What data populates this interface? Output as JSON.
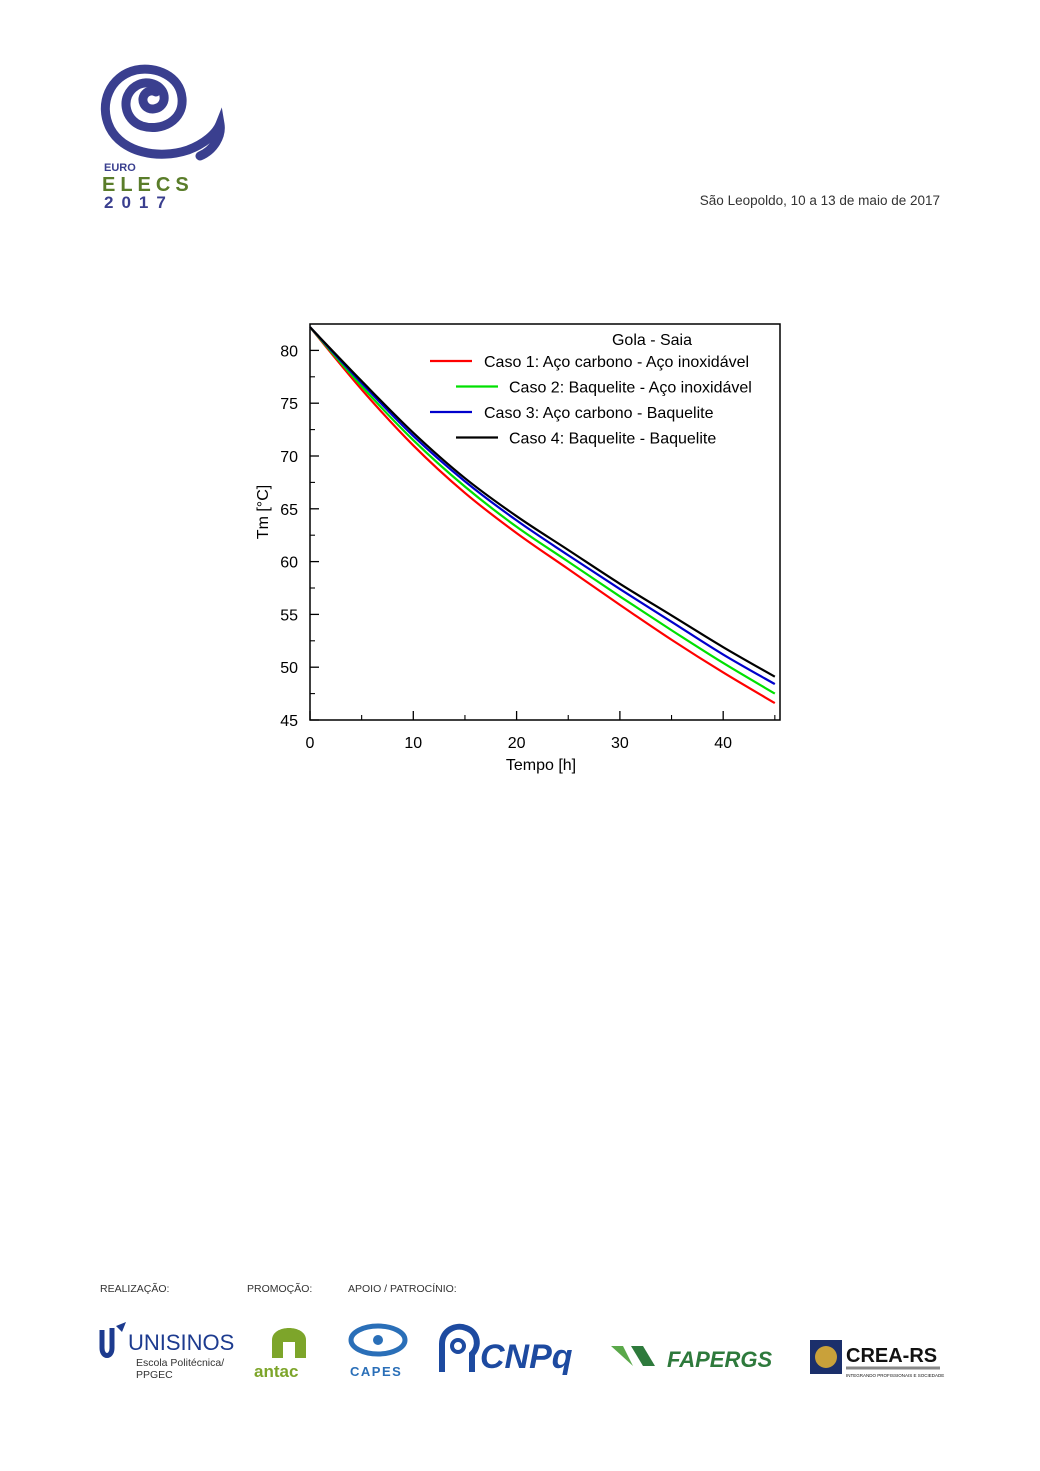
{
  "header": {
    "logo_top": "EURO",
    "logo_middle": "ELECS",
    "logo_year": "2017",
    "date_line": "São Leopoldo, 10 a 13 de maio de 2017"
  },
  "chart_data": {
    "type": "line",
    "title": "",
    "legend_title": "Gola - Saia",
    "xlabel": "Tempo [h]",
    "ylabel": "Tm [°C]",
    "xlim": [
      0,
      45.5
    ],
    "ylim": [
      45,
      82.5
    ],
    "xticks": [
      0,
      10,
      20,
      30,
      40
    ],
    "yticks": [
      45,
      50,
      55,
      60,
      65,
      70,
      75,
      80
    ],
    "legend_position": "top-right",
    "grid": false,
    "x": [
      0,
      5,
      10,
      15,
      20,
      25,
      30,
      35,
      40,
      45
    ],
    "series": [
      {
        "name": "Caso 1: Aço carbono - Aço inoxidável",
        "color": "#ff0000",
        "values": [
          82.2,
          76.3,
          71.0,
          66.5,
          62.7,
          59.3,
          55.9,
          52.6,
          49.5,
          46.6
        ]
      },
      {
        "name": "Caso 2: Baquelite - Aço inoxidável",
        "color": "#00e000",
        "values": [
          82.2,
          76.6,
          71.5,
          67.1,
          63.3,
          60.0,
          56.7,
          53.5,
          50.4,
          47.5
        ]
      },
      {
        "name": "Caso 3: Aço carbono - Baquelite",
        "color": "#0000cc",
        "values": [
          82.2,
          76.9,
          71.9,
          67.6,
          63.9,
          60.6,
          57.4,
          54.3,
          51.2,
          48.4
        ]
      },
      {
        "name": "Caso 4: Baquelite - Baquelite",
        "color": "#000000",
        "values": [
          82.2,
          77.1,
          72.2,
          67.9,
          64.3,
          61.1,
          57.9,
          54.9,
          51.9,
          49.1
        ]
      }
    ]
  },
  "footer": {
    "realizacao_label": "REALIZAÇÃO:",
    "promocao_label": "PROMOÇÃO:",
    "apoio_label": "APOIO / PATROCÍNIO:",
    "unisinos_name": "UNISINOS",
    "unisinos_sub1": "Escola Politécnica/",
    "unisinos_sub2": "PPGEC",
    "antac_name": "antac",
    "capes_name": "CAPES",
    "cnpq_name": "CNPq",
    "fapergs_name": "FAPERGS",
    "crea_name": "CREA-RS",
    "crea_sub": "INTEGRANDO PROFISSIONAIS E SOCIEDADE"
  }
}
